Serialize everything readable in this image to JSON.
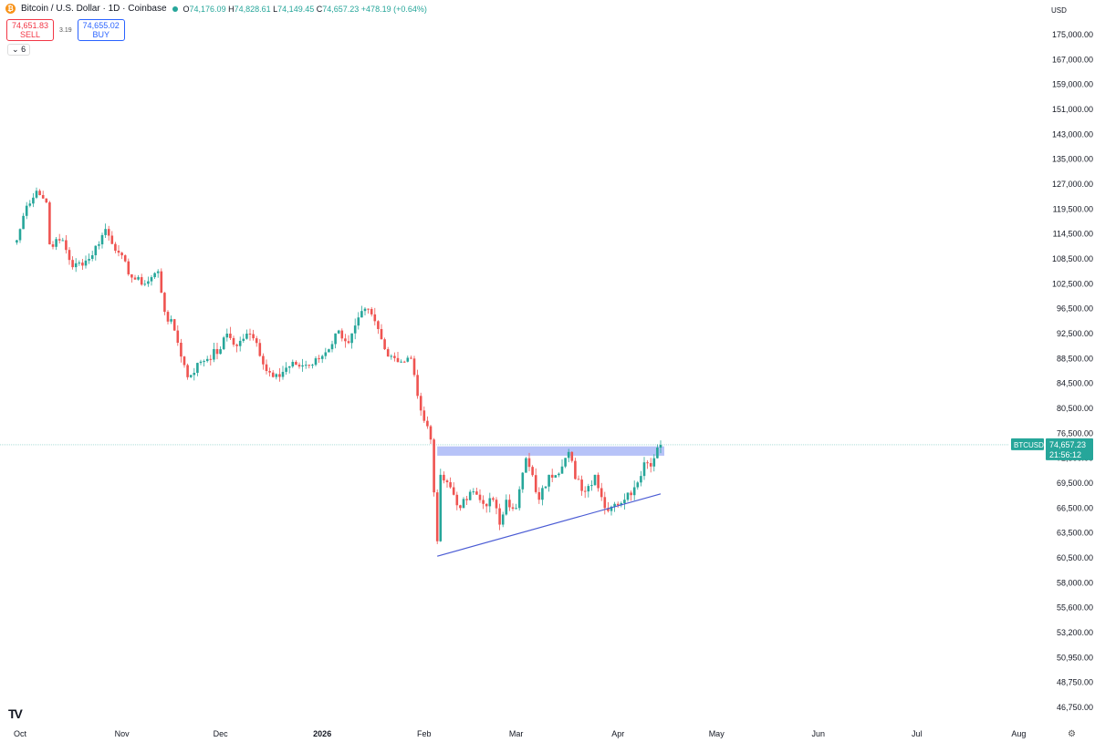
{
  "header": {
    "symbol_title": "Bitcoin / U.S. Dollar · 1D · Coinbase",
    "coin_icon": "bitcoin-icon",
    "ohlc": {
      "o_label": "O",
      "o": "74,176.09",
      "h_label": "H",
      "h": "74,828.61",
      "l_label": "L",
      "l": "74,149.45",
      "c_label": "C",
      "c": "74,657.23",
      "change": "+478.19 (+0.64%)"
    }
  },
  "trade": {
    "sell_price": "74,651.83",
    "sell_label": "SELL",
    "spread": "3.19",
    "buy_price": "74,655.02",
    "buy_label": "BUY"
  },
  "indicators_toggle": "6",
  "currency": "USD",
  "logo": "TV",
  "colors": {
    "up": "#26a69a",
    "down": "#ef5350",
    "zone": "#aab8f7",
    "trendline": "#4a5bd4",
    "price_label": "#26a69a"
  },
  "chart_data": {
    "type": "candlestick",
    "symbol": "BTCUSD",
    "last_price": "74,657.23",
    "countdown": "21:56:12",
    "y_ticks": [
      175000,
      167000,
      159000,
      151000,
      143000,
      135000,
      127000,
      119500,
      114500,
      108500,
      102500,
      96500,
      92500,
      88500,
      84500,
      80500,
      76500,
      72500,
      69500,
      66500,
      63500,
      60500,
      58000,
      55600,
      53200,
      50950,
      48750,
      46750
    ],
    "x_ticks": [
      {
        "label": "Oct",
        "date": "2025-10-01"
      },
      {
        "label": "Nov",
        "date": "2025-11-01"
      },
      {
        "label": "Dec",
        "date": "2025-12-01"
      },
      {
        "label": "2026",
        "date": "2026-01-01",
        "bold": true
      },
      {
        "label": "Feb",
        "date": "2026-02-01"
      },
      {
        "label": "Mar",
        "date": "2026-03-01"
      },
      {
        "label": "Apr",
        "date": "2026-04-01"
      },
      {
        "label": "May",
        "date": "2026-05-01"
      },
      {
        "label": "Jun",
        "date": "2026-06-01"
      },
      {
        "label": "Jul",
        "date": "2026-07-01"
      },
      {
        "label": "Aug",
        "date": "2026-08-01"
      }
    ],
    "close_waypoints": [
      [
        "2025-09-30",
        113000
      ],
      [
        "2025-10-03",
        120500
      ],
      [
        "2025-10-06",
        125000
      ],
      [
        "2025-10-09",
        121500
      ],
      [
        "2025-10-10",
        112000
      ],
      [
        "2025-10-14",
        113000
      ],
      [
        "2025-10-17",
        106500
      ],
      [
        "2025-10-22",
        108500
      ],
      [
        "2025-10-27",
        115500
      ],
      [
        "2025-10-31",
        110000
      ],
      [
        "2025-11-04",
        104000
      ],
      [
        "2025-11-08",
        102500
      ],
      [
        "2025-11-12",
        105500
      ],
      [
        "2025-11-14",
        96000
      ],
      [
        "2025-11-17",
        93000
      ],
      [
        "2025-11-21",
        85500
      ],
      [
        "2025-11-25",
        88000
      ],
      [
        "2025-12-01",
        90000
      ],
      [
        "2025-12-03",
        92500
      ],
      [
        "2025-12-06",
        90500
      ],
      [
        "2025-12-09",
        92500
      ],
      [
        "2025-12-12",
        91000
      ],
      [
        "2025-12-15",
        86500
      ],
      [
        "2025-12-18",
        86000
      ],
      [
        "2025-12-24",
        87500
      ],
      [
        "2025-12-29",
        87500
      ],
      [
        "2026-01-02",
        89500
      ],
      [
        "2026-01-06",
        93000
      ],
      [
        "2026-01-09",
        91000
      ],
      [
        "2026-01-14",
        96500
      ],
      [
        "2026-01-17",
        94500
      ],
      [
        "2026-01-20",
        90000
      ],
      [
        "2026-01-25",
        88000
      ],
      [
        "2026-01-28",
        88500
      ],
      [
        "2026-01-30",
        82500
      ],
      [
        "2026-02-01",
        78500
      ],
      [
        "2026-02-03",
        75500
      ],
      [
        "2026-02-05",
        62500
      ],
      [
        "2026-02-06",
        70500
      ],
      [
        "2026-02-09",
        69000
      ],
      [
        "2026-02-12",
        66500
      ],
      [
        "2026-02-16",
        68500
      ],
      [
        "2026-02-19",
        67000
      ],
      [
        "2026-02-22",
        67500
      ],
      [
        "2026-02-24",
        64500
      ],
      [
        "2026-02-26",
        67500
      ],
      [
        "2026-03-01",
        66500
      ],
      [
        "2026-03-04",
        72500
      ],
      [
        "2026-03-08",
        67500
      ],
      [
        "2026-03-11",
        70500
      ],
      [
        "2026-03-15",
        71500
      ],
      [
        "2026-03-17",
        73500
      ],
      [
        "2026-03-19",
        70000
      ],
      [
        "2026-03-22",
        68500
      ],
      [
        "2026-03-25",
        70500
      ],
      [
        "2026-03-28",
        66500
      ],
      [
        "2026-03-31",
        67000
      ],
      [
        "2026-04-03",
        67500
      ],
      [
        "2026-04-06",
        69000
      ],
      [
        "2026-04-09",
        72000
      ],
      [
        "2026-04-11",
        71500
      ],
      [
        "2026-04-12",
        72500
      ],
      [
        "2026-04-13",
        74200
      ],
      [
        "2026-04-14",
        74657.23
      ]
    ],
    "resistance_zone": {
      "from": "2026-02-05",
      "to": "2026-04-14",
      "low": 72900,
      "high": 74400
    },
    "support_trendline": [
      [
        "2026-02-05",
        60700
      ],
      [
        "2026-04-14",
        68200
      ]
    ],
    "current_price_line": 74657.23
  }
}
